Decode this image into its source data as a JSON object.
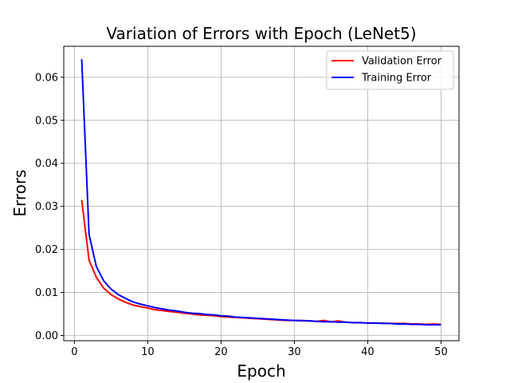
{
  "chart_data": {
    "type": "line",
    "title": "Variation of Errors with Epoch (LeNet5)",
    "xlabel": "Epoch",
    "ylabel": "Errors",
    "xlim": [
      -1.45,
      52.45
    ],
    "ylim": [
      -0.0012,
      0.0672
    ],
    "xticks": [
      0,
      10,
      20,
      30,
      40,
      50
    ],
    "xtick_labels": [
      "0",
      "10",
      "20",
      "30",
      "40",
      "50"
    ],
    "yticks": [
      0.0,
      0.01,
      0.02,
      0.03,
      0.04,
      0.05,
      0.06
    ],
    "ytick_labels": [
      "0.00",
      "0.01",
      "0.02",
      "0.03",
      "0.04",
      "0.05",
      "0.06"
    ],
    "grid": true,
    "legend_position": "top-right",
    "x": [
      1,
      2,
      3,
      4,
      5,
      6,
      7,
      8,
      9,
      10,
      11,
      12,
      13,
      14,
      15,
      16,
      17,
      18,
      19,
      20,
      21,
      22,
      23,
      24,
      25,
      26,
      27,
      28,
      29,
      30,
      31,
      32,
      33,
      34,
      35,
      36,
      37,
      38,
      39,
      40,
      41,
      42,
      43,
      44,
      45,
      46,
      47,
      48,
      49,
      50
    ],
    "series": [
      {
        "name": "Validation Error",
        "color": "#ff0000",
        "values": [
          0.0315,
          0.0175,
          0.0135,
          0.011,
          0.0095,
          0.0085,
          0.0077,
          0.0071,
          0.0067,
          0.0064,
          0.006,
          0.0058,
          0.0056,
          0.0054,
          0.0052,
          0.005,
          0.0048,
          0.0047,
          0.0046,
          0.0044,
          0.0043,
          0.0042,
          0.0041,
          0.004,
          0.0039,
          0.0038,
          0.0037,
          0.0036,
          0.0035,
          0.0035,
          0.0034,
          0.0034,
          0.0033,
          0.0035,
          0.0032,
          0.0034,
          0.0031,
          0.003,
          0.003,
          0.0029,
          0.0029,
          0.0029,
          0.0028,
          0.0028,
          0.0028,
          0.0027,
          0.0027,
          0.0026,
          0.0027,
          0.0026
        ]
      },
      {
        "name": "Training Error",
        "color": "#0000ff",
        "values": [
          0.0642,
          0.0235,
          0.016,
          0.0127,
          0.0108,
          0.0095,
          0.0086,
          0.0078,
          0.0073,
          0.0069,
          0.0065,
          0.0062,
          0.0059,
          0.0057,
          0.0054,
          0.0052,
          0.0051,
          0.0049,
          0.0048,
          0.0046,
          0.0045,
          0.0043,
          0.0042,
          0.0041,
          0.004,
          0.0039,
          0.0038,
          0.0037,
          0.0036,
          0.0035,
          0.0035,
          0.0034,
          0.0033,
          0.0032,
          0.0032,
          0.0031,
          0.0031,
          0.003,
          0.003,
          0.0029,
          0.0029,
          0.0028,
          0.0028,
          0.0027,
          0.0027,
          0.0026,
          0.0026,
          0.0025,
          0.0025,
          0.0025
        ]
      }
    ]
  }
}
